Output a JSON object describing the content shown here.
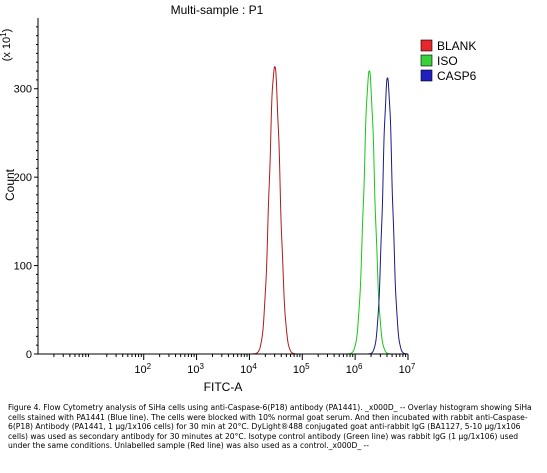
{
  "chart_data": {
    "type": "area",
    "title": "Multi-sample : P1",
    "xlabel": "FITC-A",
    "ylabel": "Count",
    "y_scale_note": "(x 10^1)",
    "x_scale": "log",
    "xlim": [
      1,
      10000000
    ],
    "ylim": [
      0,
      380
    ],
    "x_ticks": [
      {
        "base": "10",
        "exp": "2",
        "value": 100
      },
      {
        "base": "10",
        "exp": "3",
        "value": 1000
      },
      {
        "base": "10",
        "exp": "4",
        "value": 10000
      },
      {
        "base": "10",
        "exp": "5",
        "value": 100000
      },
      {
        "base": "10",
        "exp": "6",
        "value": 1000000
      },
      {
        "base": "10",
        "exp": "7",
        "value": 10000000
      }
    ],
    "y_ticks": [
      0,
      100,
      200,
      300
    ],
    "grid": false,
    "legend_position": "top-right",
    "series": [
      {
        "name": "BLANK",
        "color": "#e8262b",
        "line_color": "#b01a1a",
        "peak_x": 30000,
        "peak_y": 325,
        "width_log": 0.1
      },
      {
        "name": "ISO",
        "color": "#3ad13a",
        "line_color": "#14c814",
        "peak_x": 1850000,
        "peak_y": 320,
        "width_log": 0.1
      },
      {
        "name": "CASP6",
        "color": "#2020c0",
        "line_color": "#1a1a8a",
        "peak_x": 4100000,
        "peak_y": 312,
        "width_log": 0.09
      }
    ]
  },
  "caption": "Figure 4. Flow Cytometry analysis of SiHa cells using anti-Caspase-6(P18) antibody (PA1441). _x000D_ -- Overlay histogram showing SiHa cells stained with PA1441 (Blue line). The cells were blocked with 10% normal goat serum. And then incubated with rabbit anti-Caspase-6(P18) Antibody (PA1441, 1 μg/1x106 cells) for 30 min at 20°C. DyLight®488 conjugated goat anti-rabbit IgG (BA1127, 5-10 μg/1x106 cells) was used as secondary antibody for 30 minutes at 20°C. Isotype control antibody (Green line) was rabbit IgG (1 μg/1x106) used under the same conditions. Unlabelled sample (Red line) was also used as a control._x000D_ --"
}
